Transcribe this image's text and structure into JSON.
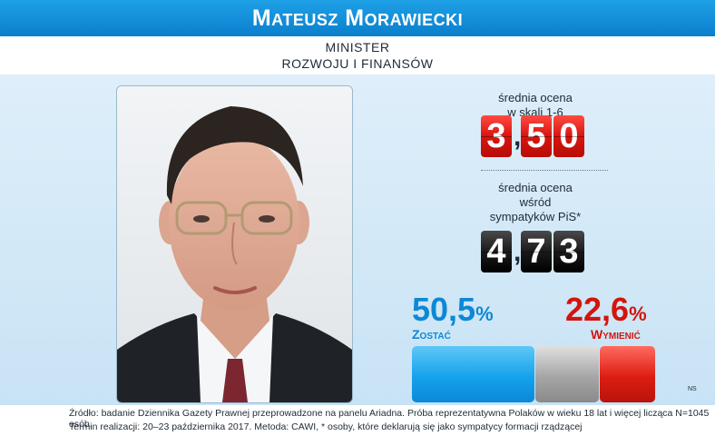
{
  "header": {
    "title": "Mateusz Morawiecki",
    "subtitle_line1": "MINISTER",
    "subtitle_line2": "ROZWOJU I FINANSÓW"
  },
  "rating": {
    "label_line1": "średnia ocena",
    "label_line2": "w skali 1-6",
    "digits": [
      "3",
      "5",
      "0"
    ],
    "comma": ","
  },
  "pis_rating": {
    "label_line1": "średnia ocena",
    "label_line2": "wśród",
    "label_line3": "sympatyków PiS*",
    "digits": [
      "4",
      "7",
      "3"
    ],
    "comma": ","
  },
  "poll": {
    "stay_value": "50,5",
    "stay_label": "Zostać",
    "replace_value": "22,6",
    "replace_label": "Wymienić",
    "percent_sign": "%",
    "stay_fraction": 0.505,
    "replace_fraction": 0.226
  },
  "credit": "NS",
  "source": {
    "line1": "Źródło: badanie Dziennika Gazety Prawnej przeprowadzone na panelu Ariadna. Próba reprezentatywna Polaków w wieku 18 lat i więcej licząca N=1045 osób.",
    "line2": "Termin realizacji: 20–23 października 2017. Metoda: CAWI, * osoby, które deklarują się jako sympatycy formacji rządzącej"
  },
  "colors": {
    "blue": "#0d88d6",
    "red": "#d3150d",
    "title_bg": "#1297e0"
  }
}
